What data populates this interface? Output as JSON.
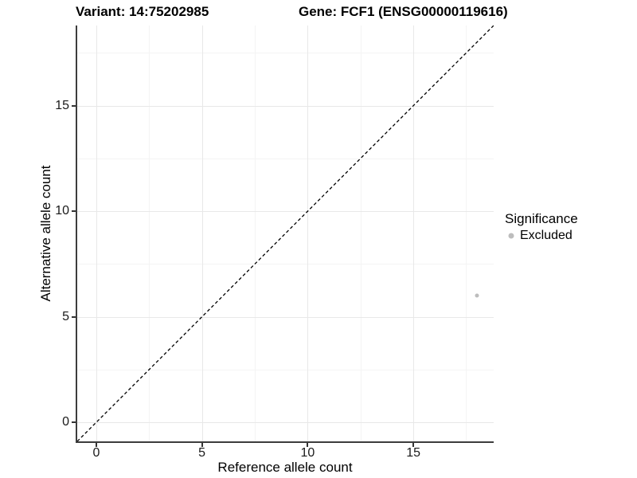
{
  "header": {
    "variant_title": "Variant: 14:75202985",
    "gene_title": "Gene: FCF1 (ENSG00000119616)"
  },
  "chart_data": {
    "type": "scatter",
    "xlabel": "Reference allele count",
    "ylabel": "Alternative allele count",
    "x_ticks": [
      0,
      5,
      10,
      15
    ],
    "y_ticks": [
      0,
      5,
      10,
      15
    ],
    "xlim": [
      -0.9,
      18.8
    ],
    "ylim": [
      -0.9,
      18.8
    ],
    "grid_major": [
      0,
      5,
      10,
      15
    ],
    "grid_minor": [
      2.5,
      7.5,
      12.5,
      17.5
    ],
    "grid_on": true,
    "points": [
      {
        "x": 18,
        "y": 6,
        "series": "Excluded"
      }
    ],
    "reference_line": {
      "type": "identity",
      "equation": "y = x",
      "style": "dashed"
    },
    "legend": {
      "title": "Significance",
      "position": "right",
      "entries": [
        {
          "label": "Excluded",
          "color": "#bdbdbd"
        }
      ]
    }
  },
  "colors": {
    "background": "#ffffff",
    "axis_line": "#3d3d3d",
    "tick_mark": "#333333",
    "tick_label": "#1a1a1a",
    "grid_major": "#e8e8e8",
    "grid_minor": "#f4f4f4",
    "dashed_line": "#000000",
    "point": "#bdbdbd"
  }
}
